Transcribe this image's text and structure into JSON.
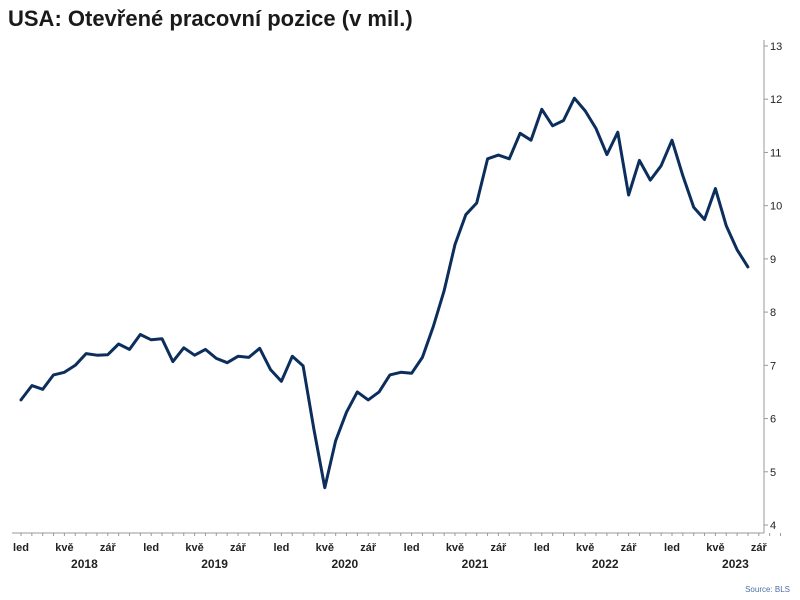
{
  "chart_data": {
    "type": "line",
    "title": "USA: Otevřené pracovní pozice (v mil.)",
    "source": "Source: BLS",
    "ylim": [
      4,
      13
    ],
    "y_ticks": [
      4,
      5,
      6,
      7,
      8,
      9,
      10,
      11,
      12,
      13
    ],
    "grid": false,
    "color": "#0b2e5c",
    "x_start": "2018-01",
    "month_tick_labels": [
      "led",
      "kvě",
      "zář"
    ],
    "years": [
      "2018",
      "2019",
      "2020",
      "2021",
      "2022",
      "2023"
    ],
    "x_axis_end_label": "zář",
    "series": [
      {
        "values": [
          6.35,
          6.62,
          6.55,
          6.82,
          6.87,
          7.0,
          7.22,
          7.19,
          7.2,
          7.4,
          7.3,
          7.58,
          7.48,
          7.5,
          7.07,
          7.33,
          7.19,
          7.3,
          7.13,
          7.05,
          7.17,
          7.15,
          7.32,
          6.92,
          6.7,
          7.17,
          6.99,
          5.8,
          4.7,
          5.58,
          6.12,
          6.5,
          6.35,
          6.5,
          6.82,
          6.87,
          6.85,
          7.15,
          7.73,
          8.4,
          9.27,
          9.83,
          10.05,
          10.88,
          10.95,
          10.88,
          11.36,
          11.23,
          11.81,
          11.5,
          11.6,
          12.02,
          11.78,
          11.45,
          10.96,
          11.38,
          10.2,
          10.85,
          10.48,
          10.75,
          11.23,
          10.56,
          9.97,
          9.74,
          10.32,
          9.62,
          9.17,
          8.85
        ]
      }
    ]
  }
}
